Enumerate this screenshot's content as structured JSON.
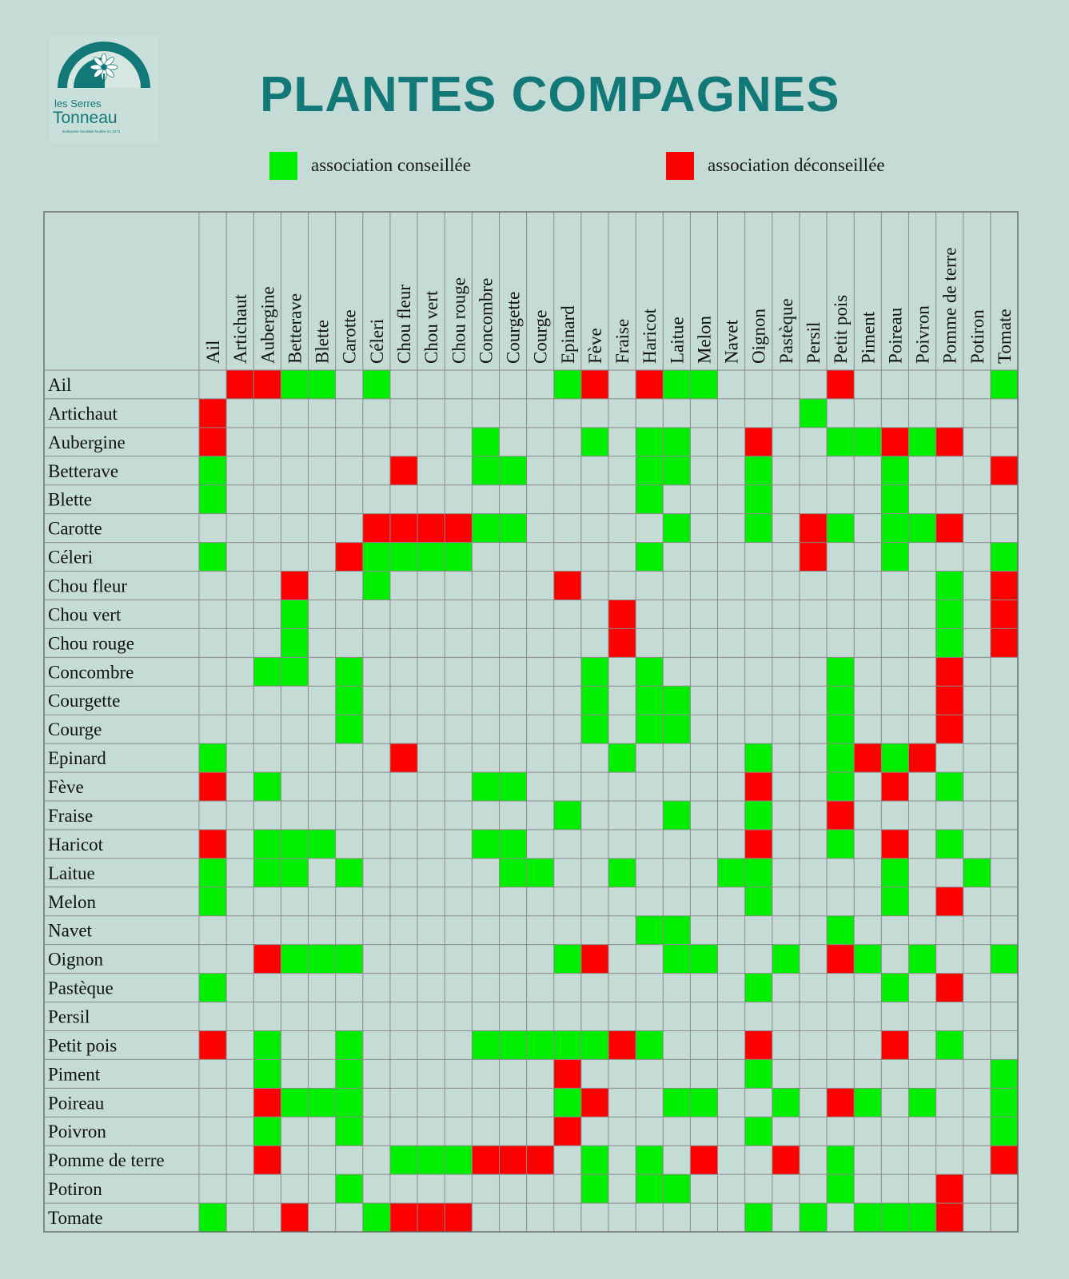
{
  "logo": {
    "brand_line1": "les Serres",
    "brand_line2": "Tonneau",
    "tagline": "Entreprise familiale fondée en 1872"
  },
  "title": "PLANTES COMPAGNES",
  "legend": {
    "good_label": "association conseillée",
    "bad_label": "association déconseillée"
  },
  "colors": {
    "good": "#00ee00",
    "bad": "#ff0000",
    "background": "#c5dbd5",
    "title": "#127878"
  },
  "chart_data": {
    "type": "heatmap",
    "categories": [
      "Ail",
      "Artichaut",
      "Aubergine",
      "Betterave",
      "Blette",
      "Carotte",
      "Céleri",
      "Chou fleur",
      "Chou vert",
      "Chou rouge",
      "Concombre",
      "Courgette",
      "Courge",
      "Epinard",
      "Fève",
      "Fraise",
      "Haricot",
      "Laitue",
      "Melon",
      "Navet",
      "Oignon",
      "Pastèque",
      "Persil",
      "Petit pois",
      "Piment",
      "Poireau",
      "Poivron",
      "Pomme de terre",
      "Potiron",
      "Tomate"
    ],
    "value_legend": {
      "1": "association conseillée",
      "-1": "association déconseillée",
      "0": ""
    },
    "rows": [
      {
        "name": "Ail",
        "values": [
          0,
          -1,
          -1,
          1,
          1,
          0,
          1,
          0,
          0,
          0,
          0,
          0,
          0,
          1,
          -1,
          0,
          -1,
          1,
          1,
          0,
          0,
          0,
          0,
          -1,
          0,
          0,
          0,
          0,
          0,
          1
        ]
      },
      {
        "name": "Artichaut",
        "values": [
          -1,
          0,
          0,
          0,
          0,
          0,
          0,
          0,
          0,
          0,
          0,
          0,
          0,
          0,
          0,
          0,
          0,
          0,
          0,
          0,
          0,
          0,
          1,
          0,
          0,
          0,
          0,
          0,
          0,
          0
        ]
      },
      {
        "name": "Aubergine",
        "values": [
          -1,
          0,
          0,
          0,
          0,
          0,
          0,
          0,
          0,
          0,
          1,
          0,
          0,
          0,
          1,
          0,
          1,
          1,
          0,
          0,
          -1,
          0,
          0,
          1,
          1,
          -1,
          1,
          -1,
          0,
          0
        ]
      },
      {
        "name": "Betterave",
        "values": [
          1,
          0,
          0,
          0,
          0,
          0,
          0,
          -1,
          0,
          0,
          1,
          1,
          0,
          0,
          0,
          0,
          1,
          1,
          0,
          0,
          1,
          0,
          0,
          0,
          0,
          1,
          0,
          0,
          0,
          -1
        ]
      },
      {
        "name": "Blette",
        "values": [
          1,
          0,
          0,
          0,
          0,
          0,
          0,
          0,
          0,
          0,
          0,
          0,
          0,
          0,
          0,
          0,
          1,
          0,
          0,
          0,
          1,
          0,
          0,
          0,
          0,
          1,
          0,
          0,
          0,
          0
        ]
      },
      {
        "name": "Carotte",
        "values": [
          0,
          0,
          0,
          0,
          0,
          0,
          -1,
          -1,
          -1,
          -1,
          1,
          1,
          0,
          0,
          0,
          0,
          0,
          1,
          0,
          0,
          1,
          0,
          -1,
          1,
          0,
          1,
          1,
          -1,
          0,
          0
        ]
      },
      {
        "name": "Céleri",
        "values": [
          1,
          0,
          0,
          0,
          0,
          -1,
          1,
          1,
          1,
          1,
          0,
          0,
          0,
          0,
          0,
          0,
          1,
          0,
          0,
          0,
          0,
          0,
          -1,
          0,
          0,
          1,
          0,
          0,
          0,
          1
        ]
      },
      {
        "name": "Chou fleur",
        "values": [
          0,
          0,
          0,
          -1,
          0,
          0,
          1,
          0,
          0,
          0,
          0,
          0,
          0,
          -1,
          0,
          0,
          0,
          0,
          0,
          0,
          0,
          0,
          0,
          0,
          0,
          0,
          0,
          1,
          0,
          -1
        ]
      },
      {
        "name": "Chou vert",
        "values": [
          0,
          0,
          0,
          1,
          0,
          0,
          0,
          0,
          0,
          0,
          0,
          0,
          0,
          0,
          0,
          -1,
          0,
          0,
          0,
          0,
          0,
          0,
          0,
          0,
          0,
          0,
          0,
          1,
          0,
          -1
        ]
      },
      {
        "name": "Chou rouge",
        "values": [
          0,
          0,
          0,
          1,
          0,
          0,
          0,
          0,
          0,
          0,
          0,
          0,
          0,
          0,
          0,
          -1,
          0,
          0,
          0,
          0,
          0,
          0,
          0,
          0,
          0,
          0,
          0,
          1,
          0,
          -1
        ]
      },
      {
        "name": "Concombre",
        "values": [
          0,
          0,
          1,
          1,
          0,
          1,
          0,
          0,
          0,
          0,
          0,
          0,
          0,
          0,
          1,
          0,
          1,
          0,
          0,
          0,
          0,
          0,
          0,
          1,
          0,
          0,
          0,
          -1,
          0,
          0
        ]
      },
      {
        "name": "Courgette",
        "values": [
          0,
          0,
          0,
          0,
          0,
          1,
          0,
          0,
          0,
          0,
          0,
          0,
          0,
          0,
          1,
          0,
          1,
          1,
          0,
          0,
          0,
          0,
          0,
          1,
          0,
          0,
          0,
          -1,
          0,
          0
        ]
      },
      {
        "name": "Courge",
        "values": [
          0,
          0,
          0,
          0,
          0,
          1,
          0,
          0,
          0,
          0,
          0,
          0,
          0,
          0,
          1,
          0,
          1,
          1,
          0,
          0,
          0,
          0,
          0,
          1,
          0,
          0,
          0,
          -1,
          0,
          0
        ]
      },
      {
        "name": "Epinard",
        "values": [
          1,
          0,
          0,
          0,
          0,
          0,
          0,
          -1,
          0,
          0,
          0,
          0,
          0,
          0,
          0,
          1,
          0,
          0,
          0,
          0,
          1,
          0,
          0,
          1,
          -1,
          1,
          -1,
          0,
          0,
          0
        ]
      },
      {
        "name": "Fève",
        "values": [
          -1,
          0,
          1,
          0,
          0,
          0,
          0,
          0,
          0,
          0,
          1,
          1,
          0,
          0,
          0,
          0,
          0,
          0,
          0,
          0,
          -1,
          0,
          0,
          1,
          0,
          -1,
          0,
          1,
          0,
          0
        ]
      },
      {
        "name": "Fraise",
        "values": [
          0,
          0,
          0,
          0,
          0,
          0,
          0,
          0,
          0,
          0,
          0,
          0,
          0,
          1,
          0,
          0,
          0,
          1,
          0,
          0,
          1,
          0,
          0,
          -1,
          0,
          0,
          0,
          0,
          0,
          0
        ]
      },
      {
        "name": "Haricot",
        "values": [
          -1,
          0,
          1,
          1,
          1,
          0,
          0,
          0,
          0,
          0,
          1,
          1,
          0,
          0,
          0,
          0,
          0,
          0,
          0,
          0,
          -1,
          0,
          0,
          1,
          0,
          -1,
          0,
          1,
          0,
          0
        ]
      },
      {
        "name": "Laitue",
        "values": [
          1,
          0,
          1,
          1,
          0,
          1,
          0,
          0,
          0,
          0,
          0,
          1,
          1,
          0,
          0,
          1,
          0,
          0,
          0,
          1,
          1,
          0,
          0,
          0,
          0,
          1,
          0,
          0,
          1,
          0
        ]
      },
      {
        "name": "Melon",
        "values": [
          1,
          0,
          0,
          0,
          0,
          0,
          0,
          0,
          0,
          0,
          0,
          0,
          0,
          0,
          0,
          0,
          0,
          0,
          0,
          0,
          1,
          0,
          0,
          0,
          0,
          1,
          0,
          -1,
          0,
          0
        ]
      },
      {
        "name": "Navet",
        "values": [
          0,
          0,
          0,
          0,
          0,
          0,
          0,
          0,
          0,
          0,
          0,
          0,
          0,
          0,
          0,
          0,
          1,
          1,
          0,
          0,
          0,
          0,
          0,
          1,
          0,
          0,
          0,
          0,
          0,
          0
        ]
      },
      {
        "name": "Oignon",
        "values": [
          0,
          0,
          -1,
          1,
          1,
          1,
          0,
          0,
          0,
          0,
          0,
          0,
          0,
          1,
          -1,
          0,
          0,
          1,
          1,
          0,
          0,
          1,
          0,
          -1,
          1,
          0,
          1,
          0,
          0,
          1
        ]
      },
      {
        "name": "Pastèque",
        "values": [
          1,
          0,
          0,
          0,
          0,
          0,
          0,
          0,
          0,
          0,
          0,
          0,
          0,
          0,
          0,
          0,
          0,
          0,
          0,
          0,
          1,
          0,
          0,
          0,
          0,
          1,
          0,
          -1,
          0,
          0
        ]
      },
      {
        "name": "Persil",
        "values": [
          0,
          0,
          0,
          0,
          0,
          0,
          0,
          0,
          0,
          0,
          0,
          0,
          0,
          0,
          0,
          0,
          0,
          0,
          0,
          0,
          0,
          0,
          0,
          0,
          0,
          0,
          0,
          0,
          0,
          0
        ]
      },
      {
        "name": "Petit pois",
        "values": [
          -1,
          0,
          1,
          0,
          0,
          1,
          0,
          0,
          0,
          0,
          1,
          1,
          1,
          1,
          1,
          -1,
          1,
          0,
          0,
          0,
          -1,
          0,
          0,
          0,
          0,
          -1,
          0,
          1,
          0,
          0
        ]
      },
      {
        "name": "Piment",
        "values": [
          0,
          0,
          1,
          0,
          0,
          1,
          0,
          0,
          0,
          0,
          0,
          0,
          0,
          -1,
          0,
          0,
          0,
          0,
          0,
          0,
          1,
          0,
          0,
          0,
          0,
          0,
          0,
          0,
          0,
          1
        ]
      },
      {
        "name": "Poireau",
        "values": [
          0,
          0,
          -1,
          1,
          1,
          1,
          0,
          0,
          0,
          0,
          0,
          0,
          0,
          1,
          -1,
          0,
          0,
          1,
          1,
          0,
          0,
          1,
          0,
          -1,
          1,
          0,
          1,
          0,
          0,
          1
        ]
      },
      {
        "name": "Poivron",
        "values": [
          0,
          0,
          1,
          0,
          0,
          1,
          0,
          0,
          0,
          0,
          0,
          0,
          0,
          -1,
          0,
          0,
          0,
          0,
          0,
          0,
          1,
          0,
          0,
          0,
          0,
          0,
          0,
          0,
          0,
          1
        ]
      },
      {
        "name": "Pomme de terre",
        "values": [
          0,
          0,
          -1,
          0,
          0,
          0,
          0,
          1,
          1,
          1,
          -1,
          -1,
          -1,
          0,
          1,
          0,
          1,
          0,
          -1,
          0,
          0,
          -1,
          0,
          1,
          0,
          0,
          0,
          0,
          0,
          -1
        ]
      },
      {
        "name": "Potiron",
        "values": [
          0,
          0,
          0,
          0,
          0,
          1,
          0,
          0,
          0,
          0,
          0,
          0,
          0,
          0,
          1,
          0,
          1,
          1,
          0,
          0,
          0,
          0,
          0,
          1,
          0,
          0,
          0,
          -1,
          0,
          0
        ]
      },
      {
        "name": "Tomate",
        "values": [
          1,
          0,
          0,
          -1,
          0,
          0,
          1,
          -1,
          -1,
          -1,
          0,
          0,
          0,
          0,
          0,
          0,
          0,
          0,
          0,
          0,
          1,
          0,
          1,
          0,
          1,
          1,
          1,
          -1,
          0,
          0
        ]
      }
    ]
  }
}
